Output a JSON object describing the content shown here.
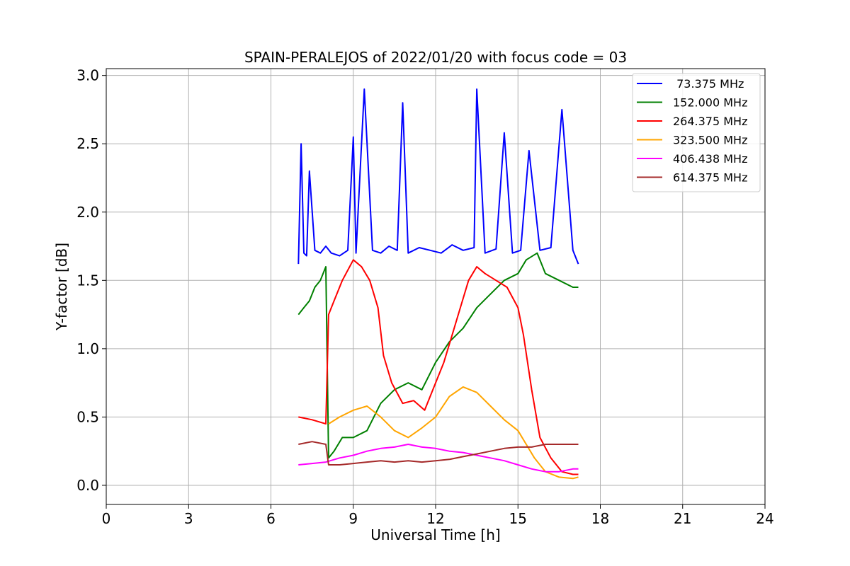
{
  "chart_data": {
    "type": "line",
    "title": "SPAIN-PERALEJOS of 2022/01/20 with focus code = 03",
    "xlabel": "Universal Time [h]",
    "ylabel": "Y-factor [dB]",
    "xlim": [
      0,
      24
    ],
    "ylim": [
      -0.14,
      3.05
    ],
    "xticks": [
      0,
      3,
      6,
      9,
      12,
      15,
      18,
      21,
      24
    ],
    "xtick_labels": [
      "0",
      "3",
      "6",
      "9",
      "12",
      "15",
      "18",
      "21",
      "24"
    ],
    "yticks": [
      0.0,
      0.5,
      1.0,
      1.5,
      2.0,
      2.5,
      3.0
    ],
    "ytick_labels": [
      "0.0",
      "0.5",
      "1.0",
      "1.5",
      "2.0",
      "2.5",
      "3.0"
    ],
    "grid": true,
    "legend_position": "top-right",
    "series": [
      {
        "name": " 73.375 MHz",
        "color": "#0000ff",
        "x": [
          7.0,
          7.1,
          7.2,
          7.3,
          7.4,
          7.6,
          7.8,
          8.0,
          8.2,
          8.5,
          8.8,
          9.0,
          9.1,
          9.4,
          9.7,
          10.0,
          10.3,
          10.6,
          10.8,
          11.0,
          11.4,
          11.8,
          12.2,
          12.6,
          13.0,
          13.4,
          13.5,
          13.8,
          14.2,
          14.5,
          14.8,
          15.1,
          15.4,
          15.8,
          16.2,
          16.6,
          17.0,
          17.2
        ],
        "y": [
          1.62,
          2.5,
          1.7,
          1.68,
          2.3,
          1.72,
          1.7,
          1.75,
          1.7,
          1.68,
          1.72,
          2.55,
          1.7,
          2.9,
          1.72,
          1.7,
          1.75,
          1.72,
          2.8,
          1.7,
          1.74,
          1.72,
          1.7,
          1.76,
          1.72,
          1.74,
          2.9,
          1.7,
          1.73,
          2.58,
          1.7,
          1.72,
          2.45,
          1.72,
          1.74,
          2.75,
          1.72,
          1.62
        ]
      },
      {
        "name": "152.000 MHz",
        "color": "#008000",
        "x": [
          7.0,
          7.2,
          7.4,
          7.6,
          7.8,
          8.0,
          8.1,
          8.3,
          8.6,
          9.0,
          9.5,
          10.0,
          10.5,
          11.0,
          11.5,
          12.0,
          12.5,
          13.0,
          13.5,
          14.0,
          14.5,
          15.0,
          15.3,
          15.7,
          16.0,
          16.5,
          17.0,
          17.2
        ],
        "y": [
          1.25,
          1.3,
          1.35,
          1.45,
          1.5,
          1.6,
          0.2,
          0.25,
          0.35,
          0.35,
          0.4,
          0.6,
          0.7,
          0.75,
          0.7,
          0.9,
          1.05,
          1.15,
          1.3,
          1.4,
          1.5,
          1.55,
          1.65,
          1.7,
          1.55,
          1.5,
          1.45,
          1.45
        ]
      },
      {
        "name": "264.375 MHz",
        "color": "#ff0000",
        "x": [
          7.0,
          7.5,
          8.0,
          8.1,
          8.3,
          8.6,
          9.0,
          9.3,
          9.6,
          9.9,
          10.1,
          10.4,
          10.8,
          11.2,
          11.6,
          12.0,
          12.3,
          12.6,
          12.9,
          13.2,
          13.5,
          13.8,
          14.2,
          14.6,
          15.0,
          15.2,
          15.5,
          15.8,
          16.2,
          16.6,
          17.0,
          17.2
        ],
        "y": [
          0.5,
          0.48,
          0.45,
          1.25,
          1.35,
          1.5,
          1.65,
          1.6,
          1.5,
          1.3,
          0.95,
          0.75,
          0.6,
          0.62,
          0.55,
          0.75,
          0.9,
          1.1,
          1.3,
          1.5,
          1.6,
          1.55,
          1.5,
          1.45,
          1.3,
          1.1,
          0.7,
          0.35,
          0.2,
          0.1,
          0.08,
          0.08
        ]
      },
      {
        "name": "323.500 MHz",
        "color": "#ffa500",
        "x": [
          8.1,
          8.5,
          9.0,
          9.5,
          10.0,
          10.5,
          11.0,
          11.5,
          12.0,
          12.5,
          13.0,
          13.5,
          14.0,
          14.5,
          15.0,
          15.3,
          15.6,
          16.0,
          16.5,
          17.0,
          17.2
        ],
        "y": [
          0.45,
          0.5,
          0.55,
          0.58,
          0.5,
          0.4,
          0.35,
          0.42,
          0.5,
          0.65,
          0.72,
          0.68,
          0.58,
          0.48,
          0.4,
          0.3,
          0.2,
          0.1,
          0.06,
          0.05,
          0.06
        ]
      },
      {
        "name": "406.438 MHz",
        "color": "#ff00ff",
        "x": [
          7.0,
          7.5,
          8.0,
          8.5,
          9.0,
          9.5,
          10.0,
          10.5,
          11.0,
          11.5,
          12.0,
          12.5,
          13.0,
          13.5,
          14.0,
          14.5,
          15.0,
          15.5,
          16.0,
          16.5,
          17.0,
          17.2
        ],
        "y": [
          0.15,
          0.16,
          0.17,
          0.2,
          0.22,
          0.25,
          0.27,
          0.28,
          0.3,
          0.28,
          0.27,
          0.25,
          0.24,
          0.22,
          0.2,
          0.18,
          0.15,
          0.12,
          0.1,
          0.1,
          0.12,
          0.12
        ]
      },
      {
        "name": "614.375 MHz",
        "color": "#a52a2a",
        "x": [
          7.0,
          7.5,
          8.0,
          8.1,
          8.5,
          9.0,
          9.5,
          10.0,
          10.5,
          11.0,
          11.5,
          12.0,
          12.5,
          13.0,
          13.5,
          14.0,
          14.5,
          15.0,
          15.5,
          16.0,
          16.5,
          17.0,
          17.2
        ],
        "y": [
          0.3,
          0.32,
          0.3,
          0.15,
          0.15,
          0.16,
          0.17,
          0.18,
          0.17,
          0.18,
          0.17,
          0.18,
          0.19,
          0.21,
          0.23,
          0.25,
          0.27,
          0.28,
          0.28,
          0.3,
          0.3,
          0.3,
          0.3
        ]
      }
    ]
  }
}
